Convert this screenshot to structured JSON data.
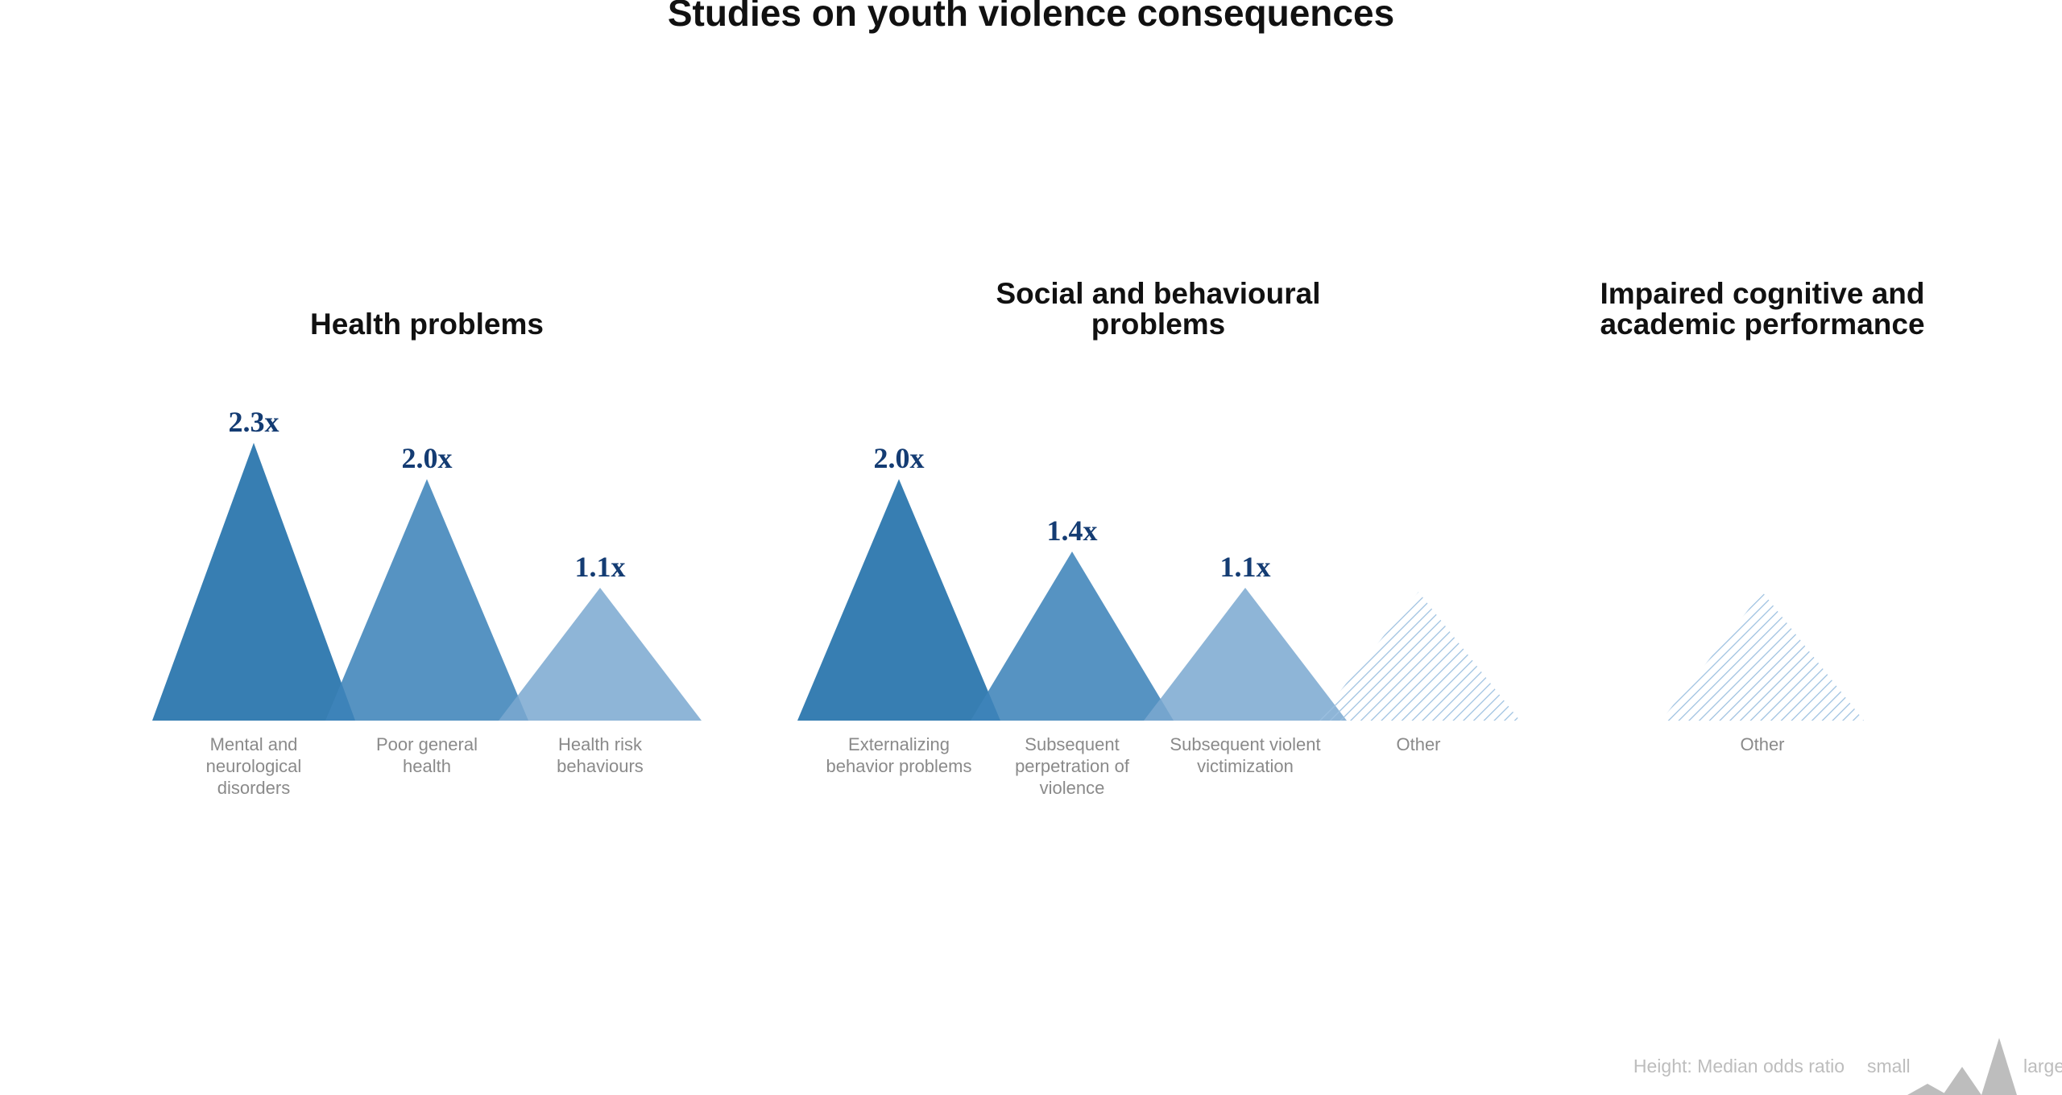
{
  "title": "Studies on youth violence consequences",
  "colors": {
    "dark": "#2170aa",
    "mid": "#3f84ba",
    "light": "#7aa8d0",
    "hatch": "#9cc0e0",
    "value_text": "#143c73",
    "legend": "#bdbdbd"
  },
  "chart_data": {
    "type": "bar",
    "mark": "triangle",
    "value_suffix": "x",
    "groups": [
      {
        "title": "Health problems",
        "items": [
          {
            "label": "Mental and neurological disorders",
            "value": 2.3,
            "value_label": "2.3x",
            "tone": "dark"
          },
          {
            "label": "Poor general health",
            "value": 2.0,
            "value_label": "2.0x",
            "tone": "mid"
          },
          {
            "label": "Health risk behaviours",
            "value": 1.1,
            "value_label": "1.1x",
            "tone": "light"
          }
        ]
      },
      {
        "title": "Social and behavioural problems",
        "items": [
          {
            "label": "Externalizing behavior problems",
            "value": 2.0,
            "value_label": "2.0x",
            "tone": "dark"
          },
          {
            "label": "Subsequent perpetration of violence",
            "value": 1.4,
            "value_label": "1.4x",
            "tone": "mid"
          },
          {
            "label": "Subsequent violent victimization",
            "value": 1.1,
            "value_label": "1.1x",
            "tone": "light"
          },
          {
            "label": "Other",
            "value": null,
            "value_label": "",
            "tone": "hatch"
          }
        ]
      },
      {
        "title": "Impaired cognitive and academic performance",
        "items": [
          {
            "label": "Other",
            "value": null,
            "value_label": "",
            "tone": "hatch"
          }
        ]
      }
    ]
  },
  "legend": {
    "height_label": "Height: Median odds ratio",
    "small_label": "small",
    "large_label": "large"
  }
}
